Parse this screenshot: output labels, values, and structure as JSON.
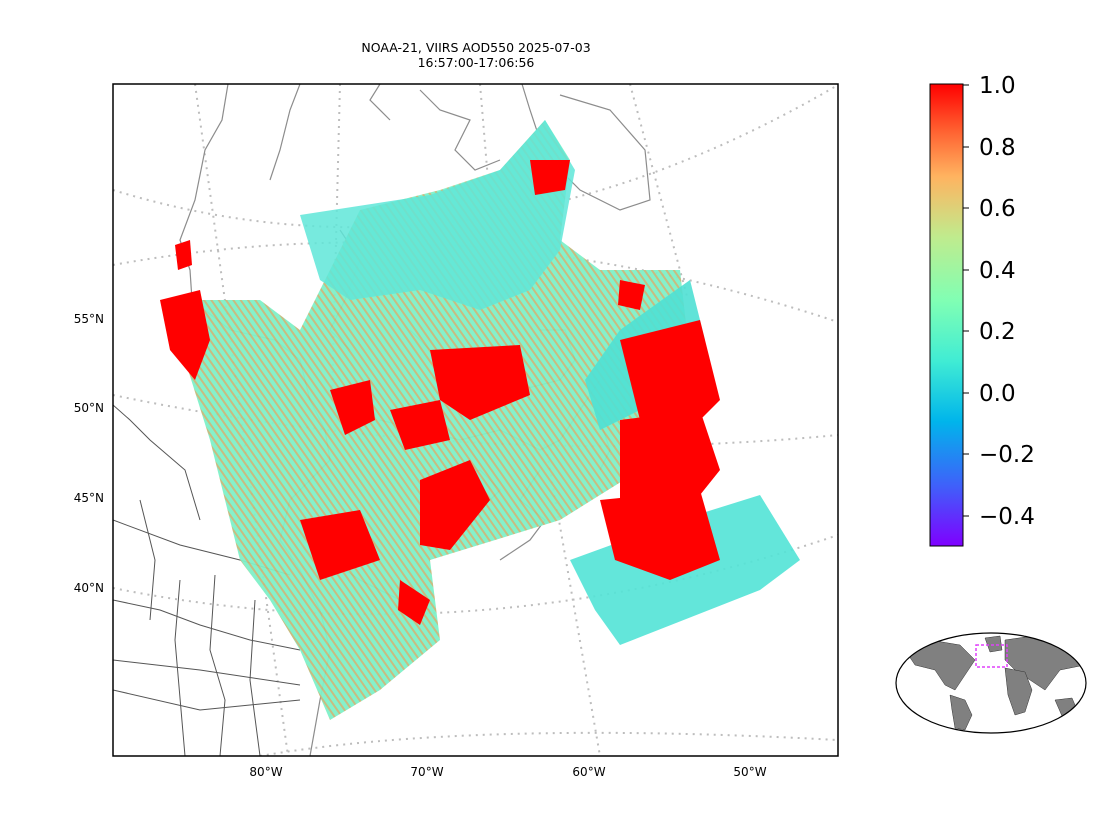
{
  "title": {
    "line1": "NOAA-21, VIIRS AOD550 2025-07-03",
    "line2": "16:57:00-17:06:56"
  },
  "map": {
    "lat_labels": [
      "55°N",
      "50°N",
      "45°N",
      "40°N"
    ],
    "lon_labels": [
      "80°W",
      "70°W",
      "60°W",
      "50°W"
    ],
    "coastline_color": "#8c8c8c",
    "border_color": "#555555",
    "graticule_color": "#bdbdbd"
  },
  "colorbar": {
    "ticks": [
      "1.0",
      "0.8",
      "0.6",
      "0.4",
      "0.2",
      "0.0",
      "−0.2",
      "−0.4"
    ],
    "range": [
      -0.5,
      1.0
    ],
    "colormap": "rainbow"
  },
  "inset": {
    "region_box_color": "#e040fb",
    "land_color": "#808080"
  }
}
